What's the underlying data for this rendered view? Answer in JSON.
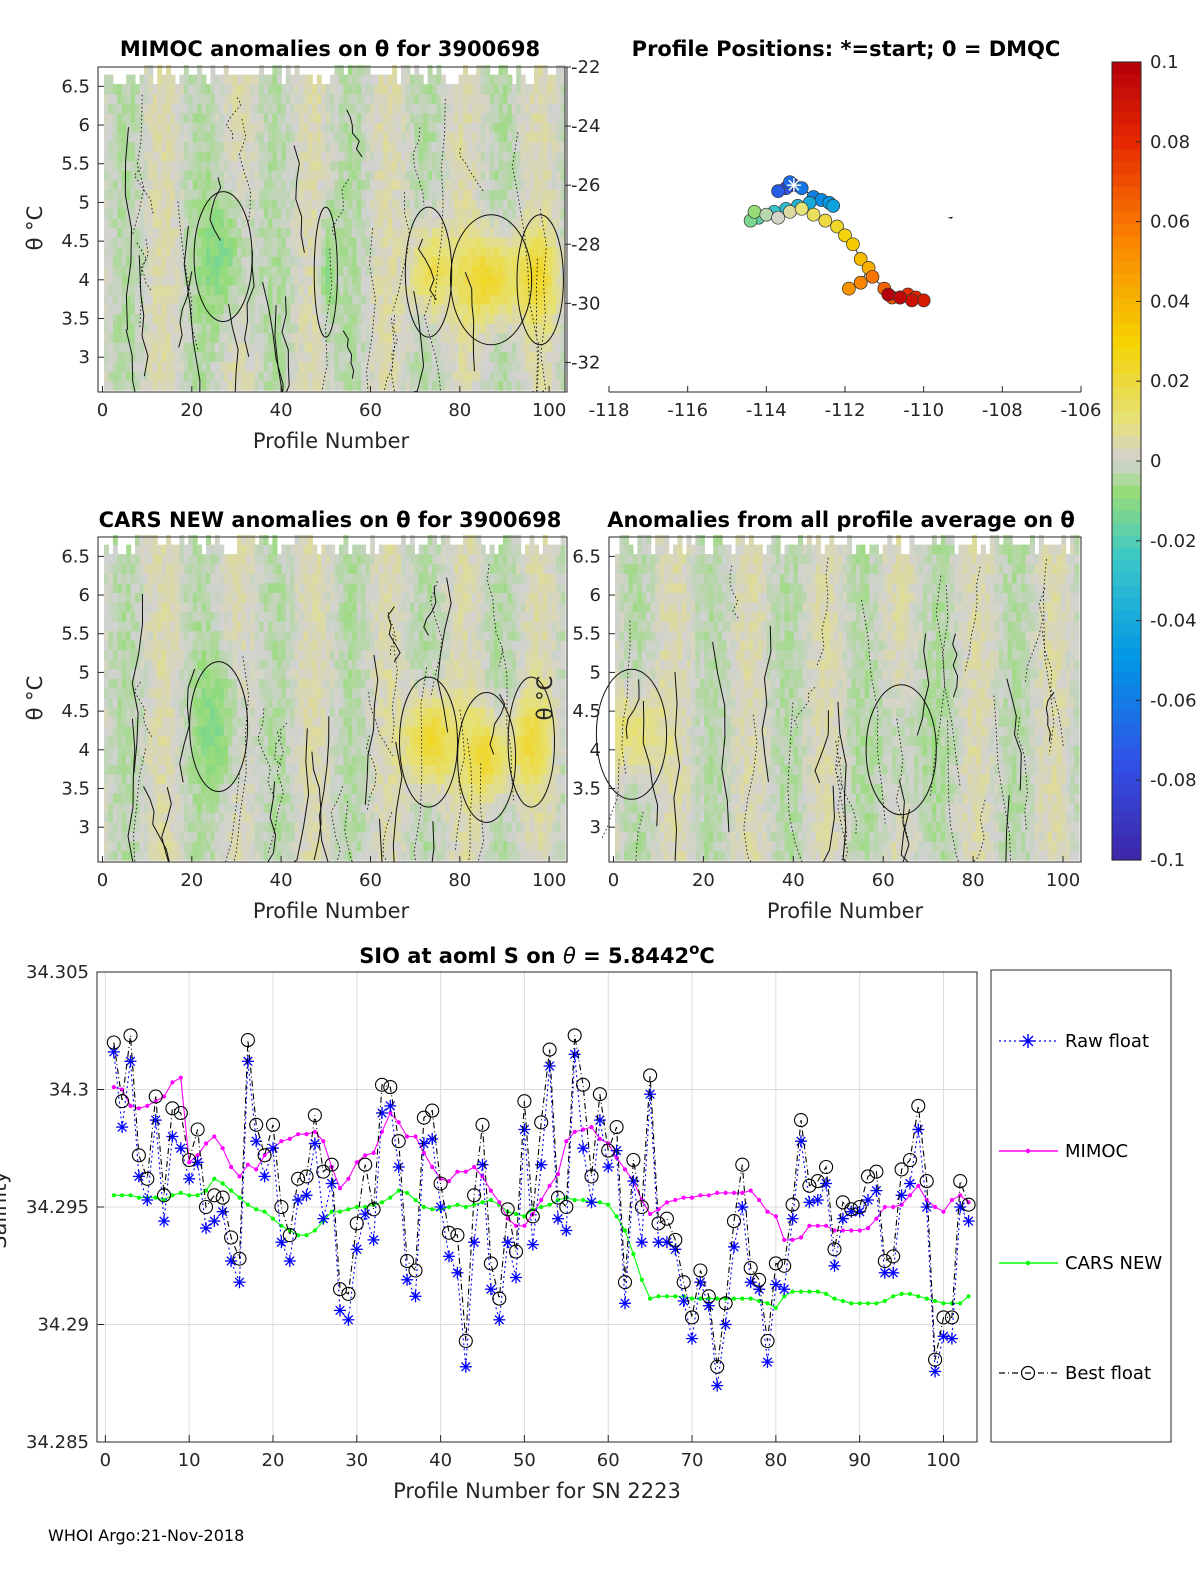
{
  "float_id": "3900698",
  "footer": "WHOI Argo:21-Nov-2018",
  "chart_data": [
    {
      "id": "mimoc",
      "type": "heatmap",
      "title": "MIMOC anomalies on θ  for 3900698",
      "xlabel": "Profile Number",
      "ylabel": "θ °C",
      "xlim": [
        -1,
        104
      ],
      "ylim": [
        2.55,
        6.75
      ],
      "xticks": [
        "0",
        "20",
        "40",
        "60",
        "80",
        "100"
      ],
      "yticks": [
        "3",
        "3.5",
        "4",
        "4.5",
        "5",
        "5.5",
        "6",
        "6.5"
      ],
      "warm_bands": [
        {
          "center": 87,
          "width": 7,
          "theta": 4.0,
          "strength": 0.024
        },
        {
          "center": 73,
          "width": 4,
          "theta": 4.1,
          "strength": 0.02
        },
        {
          "center": 98,
          "width": 4,
          "theta": 4.0,
          "strength": 0.018
        }
      ],
      "cool_bands": [
        {
          "center": 27,
          "width": 5,
          "theta": 4.3,
          "strength": -0.012
        },
        {
          "center": 50,
          "width": 2,
          "theta": 4.1,
          "strength": -0.01
        }
      ]
    },
    {
      "id": "positions",
      "type": "scatter",
      "title": "Profile Positions: *=start; 0 = DMQC",
      "xticks": [
        "-118",
        "-116",
        "-114",
        "-112",
        "-110",
        "-108",
        "-106"
      ],
      "yticks": [
        "-22",
        "-24",
        "-26",
        "-28",
        "-30",
        "-32"
      ],
      "xlim": [
        -118,
        -106
      ],
      "ylim": [
        -33.0,
        -22.0
      ],
      "start_marker": "*",
      "lon": [
        -113.3,
        -113.5,
        -113.7,
        -113.4,
        -113.1,
        -112.8,
        -112.6,
        -112.4,
        -112.3,
        -112.9,
        -113.2,
        -113.5,
        -113.8,
        -114.0,
        -114.2,
        -114.4,
        -114.3,
        -114.0,
        -113.7,
        -113.4,
        -113.1,
        -112.8,
        -112.5,
        -112.2,
        -112.0,
        -111.8,
        -111.6,
        -111.4,
        -111.6,
        -111.9,
        -111.6,
        -111.3,
        -111.0,
        -110.8,
        -110.6,
        -110.4,
        -110.2,
        -110.0,
        -110.3,
        -110.6,
        -110.9
      ],
      "lat": [
        -26.0,
        -26.1,
        -26.2,
        -25.9,
        -26.1,
        -26.4,
        -26.5,
        -26.6,
        -26.7,
        -26.6,
        -26.7,
        -26.8,
        -26.9,
        -27.0,
        -27.1,
        -27.2,
        -26.9,
        -27.0,
        -27.1,
        -26.9,
        -26.8,
        -27.0,
        -27.2,
        -27.4,
        -27.7,
        -28.0,
        -28.5,
        -28.8,
        -29.3,
        -29.5,
        -29.3,
        -29.1,
        -29.5,
        -29.8,
        -29.8,
        -29.7,
        -29.8,
        -29.9,
        -29.9,
        -29.8,
        -29.7
      ]
    },
    {
      "id": "colorbar",
      "type": "heatmap",
      "title": "",
      "range": [
        -0.1,
        0.1
      ],
      "ticks": [
        "0.1",
        "0.08",
        "0.06",
        "0.04",
        "0.02",
        "0",
        "-0.02",
        "-0.04",
        "-0.06",
        "-0.08",
        "-0.1"
      ]
    },
    {
      "id": "cars",
      "type": "heatmap",
      "title": "CARS NEW anomalies on θ for 3900698",
      "xlabel": "Profile Number",
      "ylabel": "θ °C",
      "xlim": [
        -1,
        104
      ],
      "ylim": [
        2.55,
        6.75
      ],
      "xticks": [
        "0",
        "20",
        "40",
        "60",
        "80",
        "100"
      ],
      "yticks": [
        "3",
        "3.5",
        "4",
        "4.5",
        "5",
        "5.5",
        "6",
        "6.5"
      ],
      "warm_bands": [
        {
          "center": 73,
          "width": 5,
          "theta": 4.1,
          "strength": 0.026
        },
        {
          "center": 86,
          "width": 5,
          "theta": 3.9,
          "strength": 0.022
        },
        {
          "center": 96,
          "width": 4,
          "theta": 4.1,
          "strength": 0.018
        }
      ],
      "cool_bands": [
        {
          "center": 26,
          "width": 5,
          "theta": 4.3,
          "strength": -0.01
        }
      ]
    },
    {
      "id": "allprof",
      "type": "heatmap",
      "title": "Anomalies from all profile average on θ",
      "xlabel": "Profile Number",
      "ylabel": "θ °C",
      "xlim": [
        -1,
        104
      ],
      "ylim": [
        2.55,
        6.75
      ],
      "xticks": [
        "0",
        "20",
        "40",
        "60",
        "80",
        "100"
      ],
      "yticks": [
        "3",
        "3.5",
        "4",
        "4.5",
        "5",
        "5.5",
        "6",
        "6.5"
      ],
      "warm_bands": [
        {
          "center": 4,
          "width": 6,
          "theta": 4.2,
          "strength": 0.014
        }
      ],
      "cool_bands": [
        {
          "center": 64,
          "width": 6,
          "theta": 4.0,
          "strength": -0.006
        }
      ]
    },
    {
      "id": "salinity",
      "type": "line",
      "title": "SIO at aoml S on θ = 5.8442°C",
      "title_main": "SIO at aoml S on ",
      "title_theta": "θ",
      "title_value": " = 5.8442",
      "title_unit": "o",
      "title_tail": "C",
      "xlabel": "Profile Number for SN 2223",
      "ylabel": "Salinity",
      "xlim": [
        -1,
        104
      ],
      "ylim": [
        34.285,
        34.305
      ],
      "xticks": [
        "0",
        "10",
        "20",
        "30",
        "40",
        "50",
        "60",
        "70",
        "80",
        "90",
        "100"
      ],
      "yticks": [
        "34.285",
        "34.29",
        "34.295",
        "34.3",
        "34.305"
      ],
      "x": [
        1,
        2,
        3,
        4,
        5,
        6,
        7,
        8,
        9,
        10,
        11,
        12,
        13,
        14,
        15,
        16,
        17,
        18,
        19,
        20,
        21,
        22,
        23,
        24,
        25,
        26,
        27,
        28,
        29,
        30,
        31,
        32,
        33,
        34,
        35,
        36,
        37,
        38,
        39,
        40,
        41,
        42,
        43,
        44,
        45,
        46,
        47,
        48,
        49,
        50,
        51,
        52,
        53,
        54,
        55,
        56,
        57,
        58,
        59,
        60,
        61,
        62,
        63,
        64,
        65,
        66,
        67,
        68,
        69,
        70,
        71,
        72,
        73,
        74,
        75,
        76,
        77,
        78,
        79,
        80,
        81,
        82,
        83,
        84,
        85,
        86,
        87,
        88,
        89,
        90,
        91,
        92,
        93,
        94,
        95,
        96,
        97,
        98,
        99,
        100,
        101,
        102,
        103
      ],
      "series": [
        {
          "name": "Raw float",
          "values": [
            34.3016,
            34.2984,
            34.3012,
            34.2963,
            34.2953,
            34.2987,
            34.2944,
            34.298,
            34.2975,
            34.2962,
            34.2969,
            34.2941,
            34.2944,
            34.2948,
            34.2927,
            34.2918,
            34.3012,
            34.2978,
            34.2963,
            34.2975,
            34.2935,
            34.2927,
            34.2953,
            34.2955,
            34.2977,
            34.2945,
            34.296,
            34.2906,
            34.2902,
            34.2932,
            34.2947,
            34.2936,
            34.299,
            34.2993,
            34.2967,
            34.2919,
            34.2912,
            34.2977,
            34.2979,
            34.295,
            34.2929,
            34.2922,
            34.2882,
            34.2935,
            34.2968,
            34.2915,
            34.2902,
            34.2935,
            34.292,
            34.2983,
            34.2934,
            34.2968,
            34.301,
            34.2945,
            34.294,
            34.3015,
            34.2975,
            34.2952,
            34.2987,
            34.2967,
            34.2974,
            34.2909,
            34.2961,
            34.2935,
            34.2998,
            34.2935,
            34.2935,
            34.2932,
            34.291,
            34.2894,
            34.2918,
            34.2908,
            34.2874,
            34.29,
            34.2933,
            34.295,
            34.2918,
            34.2915,
            34.2884,
            34.2917,
            34.2915,
            34.2945,
            34.2978,
            34.2952,
            34.2953,
            34.296,
            34.2925,
            34.2945,
            34.2948,
            34.2948,
            34.2953,
            34.2957,
            34.2922,
            34.2922,
            34.2955,
            34.296,
            34.2983,
            34.295,
            34.288,
            34.2895,
            34.2894,
            34.295,
            34.2944
          ]
        },
        {
          "name": "MIMOC",
          "values": [
            34.3001,
            34.3,
            34.2993,
            34.2992,
            34.2993,
            34.2995,
            34.2997,
            34.3003,
            34.3005,
            34.2969,
            34.2972,
            34.2977,
            34.298,
            34.2975,
            34.2967,
            34.2963,
            34.2968,
            34.2966,
            34.2972,
            34.2975,
            34.2978,
            34.2979,
            34.2981,
            34.2981,
            34.2982,
            34.2978,
            34.2967,
            34.2958,
            34.2962,
            34.2969,
            34.2972,
            34.2973,
            34.2982,
            34.299,
            34.2986,
            34.298,
            34.298,
            34.2973,
            34.2967,
            34.2962,
            34.2961,
            34.2965,
            34.2965,
            34.2967,
            34.2963,
            34.2957,
            34.2952,
            34.2945,
            34.2942,
            34.2942,
            34.2947,
            34.2953,
            34.2959,
            34.2964,
            34.2978,
            34.2982,
            34.2983,
            34.2984,
            34.2979,
            34.2977,
            34.2971,
            34.2966,
            34.2961,
            34.2953,
            34.2947,
            34.2949,
            34.2952,
            34.2953,
            34.2954,
            34.2954,
            34.2955,
            34.2955,
            34.2956,
            34.2956,
            34.2956,
            34.2956,
            34.2957,
            34.2953,
            34.2948,
            34.2946,
            34.2936,
            34.2936,
            34.2937,
            34.2942,
            34.2942,
            34.2942,
            34.294,
            34.294,
            34.294,
            34.294,
            34.2941,
            34.2945,
            34.295,
            34.295,
            34.2951,
            34.2955,
            34.2959,
            34.2953,
            34.295,
            34.2948,
            34.2953,
            34.2955,
            34.2952
          ]
        },
        {
          "name": "CARS NEW",
          "values": [
            34.2955,
            34.2955,
            34.2955,
            34.2954,
            34.2954,
            34.2954,
            34.2953,
            34.2955,
            34.2956,
            34.2955,
            34.2955,
            34.2957,
            34.2962,
            34.296,
            34.2957,
            34.2954,
            34.2951,
            34.2949,
            34.2948,
            34.2945,
            34.2942,
            34.294,
            34.2938,
            34.2938,
            34.294,
            34.2944,
            34.2948,
            34.2948,
            34.2949,
            34.295,
            34.295,
            34.2951,
            34.2952,
            34.2954,
            34.2957,
            34.2956,
            34.2953,
            34.295,
            34.2949,
            34.2949,
            34.295,
            34.2951,
            34.295,
            34.2951,
            34.2952,
            34.2953,
            34.2951,
            34.2948,
            34.2947,
            34.2946,
            34.2949,
            34.295,
            34.2951,
            34.2953,
            34.2954,
            34.2953,
            34.2953,
            34.2952,
            34.2952,
            34.2951,
            34.2946,
            34.294,
            34.293,
            34.2919,
            34.2911,
            34.2912,
            34.2912,
            34.2912,
            34.2912,
            34.2911,
            34.2911,
            34.2911,
            34.2911,
            34.2911,
            34.2911,
            34.2911,
            34.2911,
            34.291,
            34.2909,
            34.2907,
            34.2912,
            34.2914,
            34.2914,
            34.2914,
            34.2914,
            34.2913,
            34.2911,
            34.291,
            34.2909,
            34.2909,
            34.2909,
            34.2909,
            34.291,
            34.2912,
            34.2913,
            34.2913,
            34.2912,
            34.2911,
            34.291,
            34.2909,
            34.2909,
            34.2909,
            34.2912
          ]
        },
        {
          "name": "Best float",
          "values": [
            34.302,
            34.2995,
            34.3023,
            34.2972,
            34.2962,
            34.2997,
            34.2955,
            34.2992,
            34.299,
            34.297,
            34.2983,
            34.295,
            34.2955,
            34.2954,
            34.2937,
            34.2928,
            34.3021,
            34.2985,
            34.2972,
            34.2985,
            34.295,
            34.2938,
            34.2962,
            34.2963,
            34.2989,
            34.2965,
            34.2968,
            34.2915,
            34.2913,
            34.2943,
            34.2968,
            34.2949,
            34.3002,
            34.3001,
            34.2978,
            34.2927,
            34.2923,
            34.2988,
            34.2991,
            34.296,
            34.2939,
            34.2938,
            34.2893,
            34.2955,
            34.2985,
            34.2926,
            34.2911,
            34.2949,
            34.2931,
            34.2995,
            34.2946,
            34.2986,
            34.3017,
            34.2954,
            34.295,
            34.3023,
            34.3002,
            34.2963,
            34.2998,
            34.2974,
            34.2984,
            34.2918,
            34.297,
            34.295,
            34.3006,
            34.2943,
            34.2945,
            34.2936,
            34.2918,
            34.2903,
            34.2923,
            34.2912,
            34.2882,
            34.2909,
            34.2944,
            34.2968,
            34.2924,
            34.2919,
            34.2893,
            34.2926,
            34.2925,
            34.2951,
            34.2987,
            34.2959,
            34.2961,
            34.2967,
            34.2932,
            34.2952,
            34.2949,
            34.295,
            34.2963,
            34.2965,
            34.2927,
            34.2929,
            34.2966,
            34.297,
            34.2993,
            34.2961,
            34.2885,
            34.2903,
            34.2903,
            34.2961,
            34.2951
          ]
        }
      ],
      "legend": [
        "Raw float",
        "MIMOC",
        "CARS NEW",
        "Best float"
      ],
      "legend_position": "right"
    }
  ]
}
